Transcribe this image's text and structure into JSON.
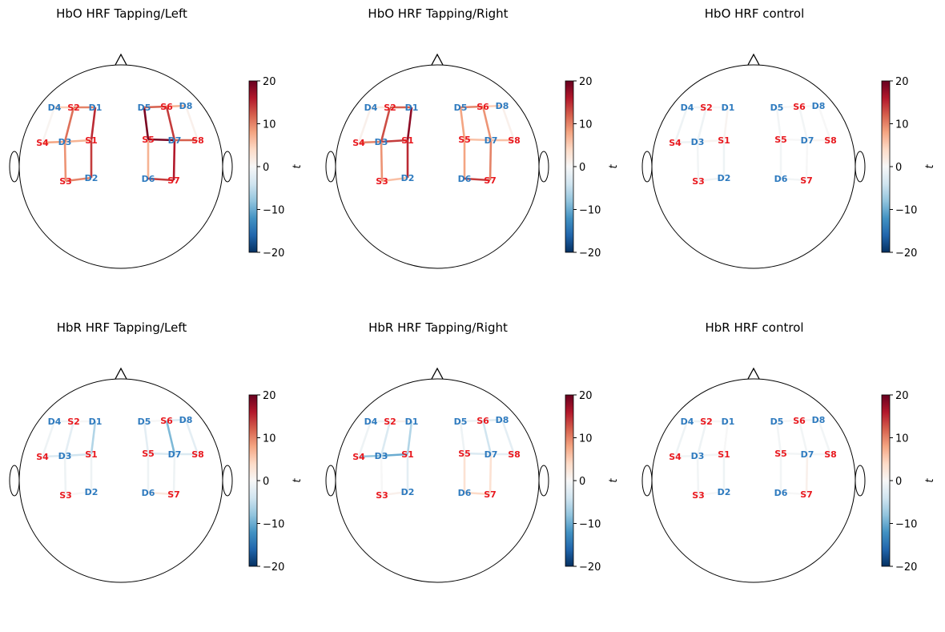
{
  "chart_data": [
    {
      "type": "topomap",
      "title": "HbO HRF Tapping/Left",
      "colorbar": {
        "label": "t",
        "range": [
          -20,
          20
        ],
        "ticks": [
          "20",
          "10",
          "0",
          "−10",
          "−20"
        ],
        "colormap": "RdBu_r"
      },
      "values": [
        15,
        14,
        7,
        10,
        11,
        5,
        10,
        9,
        8,
        0.5,
        19,
        7,
        19,
        12,
        14,
        7,
        14,
        16,
        12,
        1
      ]
    },
    {
      "type": "topomap",
      "title": "HbO HRF Tapping/Right",
      "colorbar": {
        "label": "t",
        "range": [
          -20,
          20
        ],
        "ticks": [
          "20",
          "10",
          "0",
          "−10",
          "−20"
        ],
        "colormap": "RdBu_r"
      },
      "values": [
        18,
        15,
        14,
        12,
        13,
        2,
        6,
        9,
        10,
        1,
        8,
        8,
        6,
        10,
        9,
        5,
        14,
        10,
        6,
        1
      ]
    },
    {
      "type": "topomap",
      "title": "HbO HRF control",
      "colorbar": {
        "label": "t",
        "range": [
          -20,
          20
        ],
        "ticks": [
          "20",
          "10",
          "0",
          "−10",
          "−20"
        ],
        "colormap": "RdBu_r"
      },
      "values": [
        0.5,
        -1,
        0.5,
        0,
        -1,
        -1,
        -1,
        -0.5,
        -1,
        -1,
        -0.5,
        -0.5,
        0,
        0,
        -0.5,
        0,
        -0.5,
        0,
        0.5,
        0
      ]
    },
    {
      "type": "topomap",
      "title": "HbR HRF Tapping/Left",
      "colorbar": {
        "label": "t",
        "range": [
          -20,
          20
        ],
        "ticks": [
          "20",
          "10",
          "0",
          "−10",
          "−20"
        ],
        "colormap": "RdBu_r"
      },
      "values": [
        -6,
        -1,
        -4,
        0,
        -2,
        -1,
        0,
        -1,
        -3,
        -1,
        -2,
        -1,
        -3,
        0,
        -9,
        -3,
        2,
        -1,
        -3,
        -2
      ]
    },
    {
      "type": "topomap",
      "title": "HbR HRF Tapping/Right",
      "colorbar": {
        "label": "t",
        "range": [
          -20,
          20
        ],
        "ticks": [
          "20",
          "10",
          "0",
          "−10",
          "−20"
        ],
        "colormap": "RdBu_r"
      },
      "values": [
        -6,
        -2,
        -10,
        1,
        -3,
        -1,
        1,
        0,
        -8,
        -1,
        -1,
        3,
        -3,
        -1,
        -4,
        -3,
        4,
        3,
        -2,
        -2
      ]
    },
    {
      "type": "topomap",
      "title": "HbR HRF control",
      "colorbar": {
        "label": "t",
        "range": [
          -20,
          20
        ],
        "ticks": [
          "20",
          "10",
          "0",
          "−10",
          "−20"
        ],
        "colormap": "RdBu_r"
      },
      "values": [
        0,
        -1,
        -0.5,
        0,
        -1,
        -1,
        0,
        -0.5,
        -0.5,
        -1,
        -0.5,
        -0.5,
        -0.5,
        0,
        -0.5,
        -0.5,
        0,
        1,
        -0.5,
        -0.5
      ]
    }
  ],
  "channels": [
    "S1-D1",
    "S1-D2",
    "S1-D3",
    "S2-D1",
    "S2-D3",
    "S2-D4",
    "S3-D2",
    "S3-D3",
    "S4-D3",
    "S4-D4",
    "S5-D5",
    "S5-D6",
    "S5-D7",
    "S6-D5",
    "S6-D7",
    "S6-D8",
    "S7-D6",
    "S7-D7",
    "S8-D7",
    "S8-D8"
  ],
  "optodes": {
    "sources": [
      "S1",
      "S2",
      "S3",
      "S4",
      "S5",
      "S6",
      "S7",
      "S8"
    ],
    "detectors": [
      "D1",
      "D2",
      "D3",
      "D4",
      "D5",
      "D6",
      "D7",
      "D8"
    ]
  },
  "colors": {
    "source": "#e8191f",
    "detector": "#2f7bbf"
  }
}
